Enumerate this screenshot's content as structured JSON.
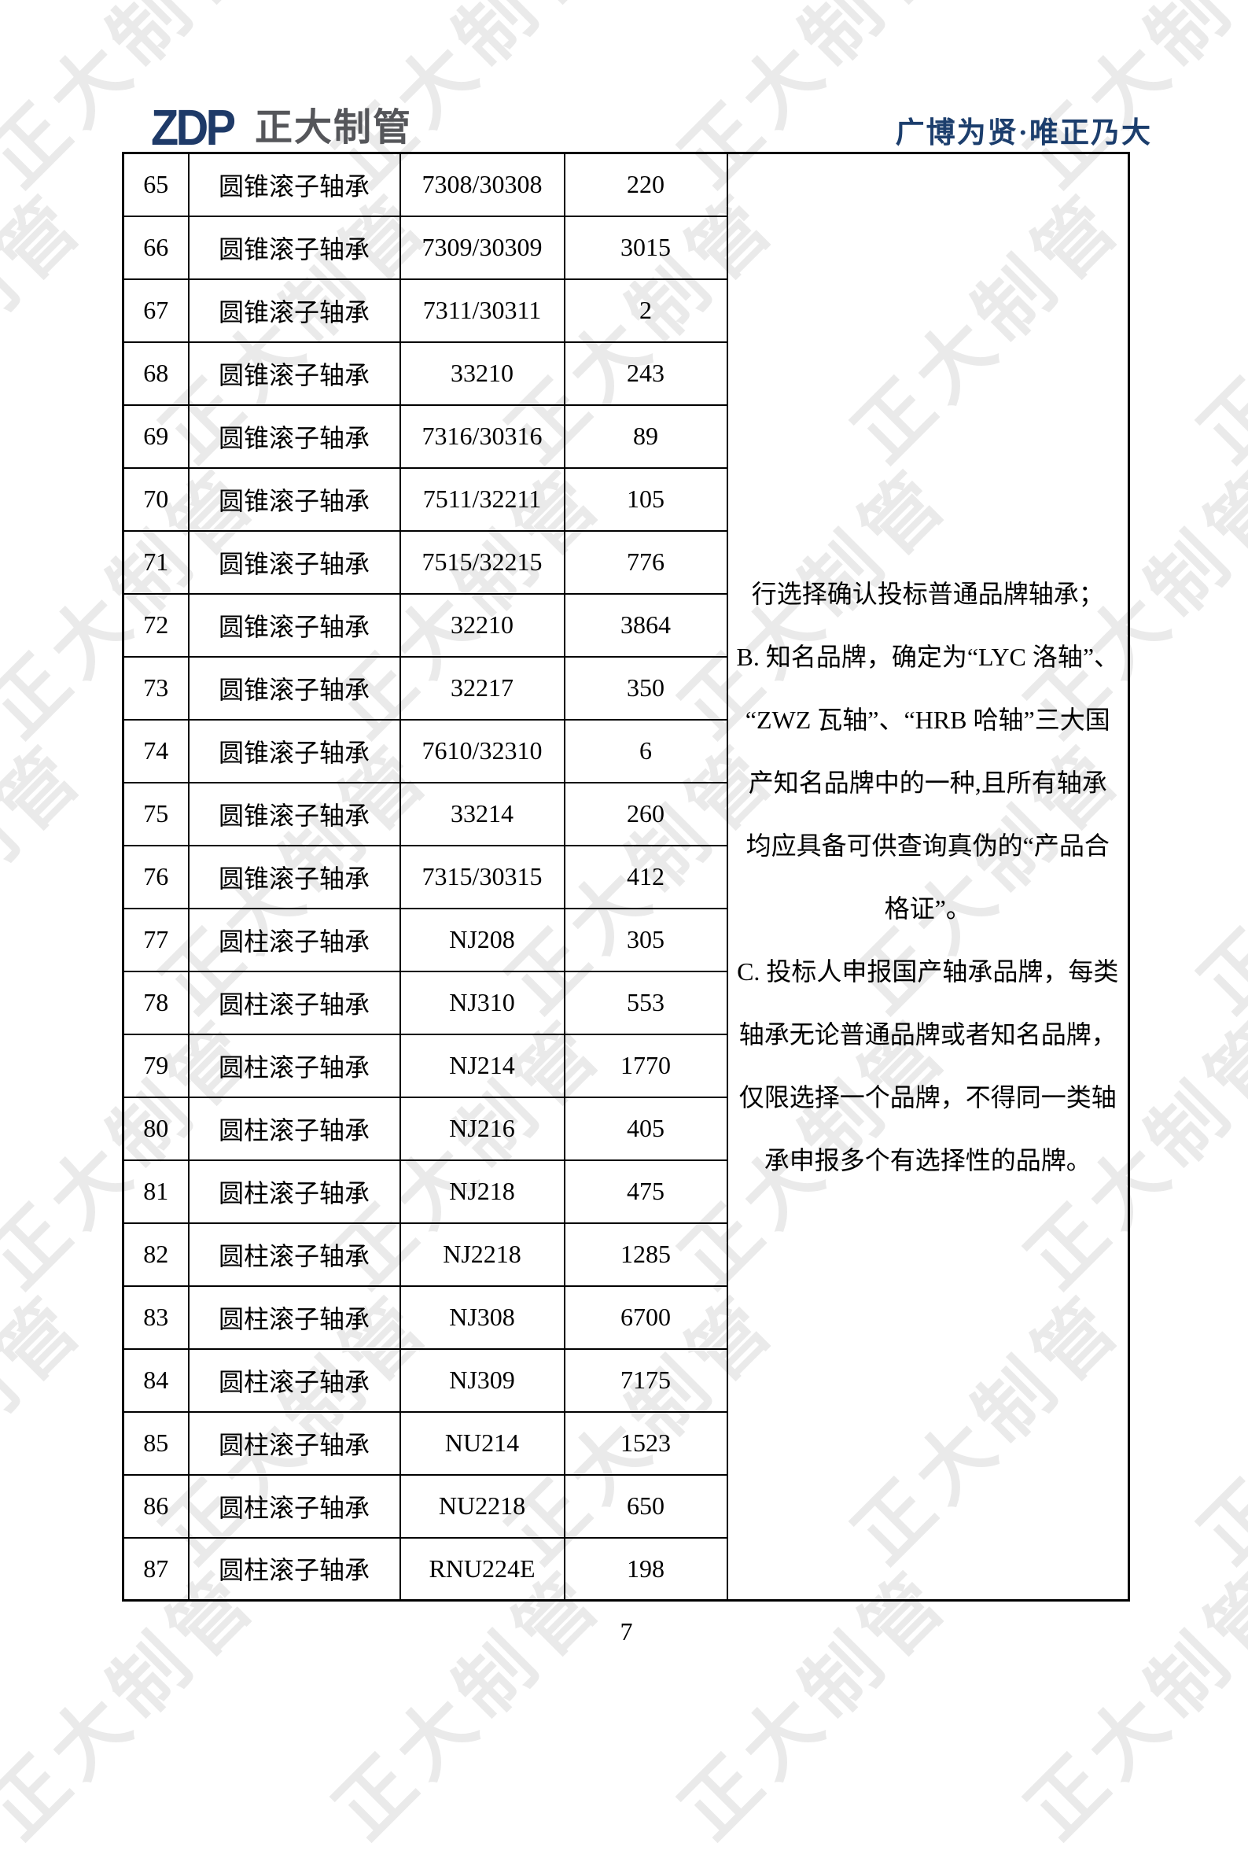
{
  "page": {
    "watermark_text": "正大制管",
    "page_number": "7"
  },
  "header": {
    "logo_zdp": "ZDP",
    "logo_company": "正大制管",
    "slogan": "广博为贤·唯正乃大"
  },
  "colors": {
    "accent_navy": "#1c3e6d",
    "logo_navy": "#1e3a68",
    "logo_gray": "#55565a",
    "table_border": "#000000",
    "watermark_gray": "#e8e8e8"
  },
  "table": {
    "rows": [
      {
        "no": "65",
        "type": "圆锥滚子轴承",
        "model": "7308/30308",
        "qty": "220"
      },
      {
        "no": "66",
        "type": "圆锥滚子轴承",
        "model": "7309/30309",
        "qty": "3015"
      },
      {
        "no": "67",
        "type": "圆锥滚子轴承",
        "model": "7311/30311",
        "qty": "2"
      },
      {
        "no": "68",
        "type": "圆锥滚子轴承",
        "model": "33210",
        "qty": "243"
      },
      {
        "no": "69",
        "type": "圆锥滚子轴承",
        "model": "7316/30316",
        "qty": "89"
      },
      {
        "no": "70",
        "type": "圆锥滚子轴承",
        "model": "7511/32211",
        "qty": "105"
      },
      {
        "no": "71",
        "type": "圆锥滚子轴承",
        "model": "7515/32215",
        "qty": "776"
      },
      {
        "no": "72",
        "type": "圆锥滚子轴承",
        "model": "32210",
        "qty": "3864"
      },
      {
        "no": "73",
        "type": "圆锥滚子轴承",
        "model": "32217",
        "qty": "350"
      },
      {
        "no": "74",
        "type": "圆锥滚子轴承",
        "model": "7610/32310",
        "qty": "6"
      },
      {
        "no": "75",
        "type": "圆锥滚子轴承",
        "model": "33214",
        "qty": "260"
      },
      {
        "no": "76",
        "type": "圆锥滚子轴承",
        "model": "7315/30315",
        "qty": "412"
      },
      {
        "no": "77",
        "type": "圆柱滚子轴承",
        "model": "NJ208",
        "qty": "305"
      },
      {
        "no": "78",
        "type": "圆柱滚子轴承",
        "model": "NJ310",
        "qty": "553"
      },
      {
        "no": "79",
        "type": "圆柱滚子轴承",
        "model": "NJ214",
        "qty": "1770"
      },
      {
        "no": "80",
        "type": "圆柱滚子轴承",
        "model": "NJ216",
        "qty": "405"
      },
      {
        "no": "81",
        "type": "圆柱滚子轴承",
        "model": "NJ218",
        "qty": "475"
      },
      {
        "no": "82",
        "type": "圆柱滚子轴承",
        "model": "NJ2218",
        "qty": "1285"
      },
      {
        "no": "83",
        "type": "圆柱滚子轴承",
        "model": "NJ308",
        "qty": "6700"
      },
      {
        "no": "84",
        "type": "圆柱滚子轴承",
        "model": "NJ309",
        "qty": "7175"
      },
      {
        "no": "85",
        "type": "圆柱滚子轴承",
        "model": "NU214",
        "qty": "1523"
      },
      {
        "no": "86",
        "type": "圆柱滚子轴承",
        "model": "NU2218",
        "qty": "650"
      },
      {
        "no": "87",
        "type": "圆柱滚子轴承",
        "model": "RNU224E",
        "qty": "198"
      }
    ],
    "remarks_lines": [
      "行选择确认投标普通品牌轴承；",
      "B. 知名品牌，确定为“LYC 洛轴”、",
      "“ZWZ 瓦轴”、“HRB 哈轴”三大国",
      "产知名品牌中的一种,且所有轴承",
      "均应具备可供查询真伪的“产品合",
      "格证”。",
      "C. 投标人申报国产轴承品牌，每类",
      "轴承无论普通品牌或者知名品牌，",
      "仅限选择一个品牌，不得同一类轴",
      "承申报多个有选择性的品牌。"
    ]
  }
}
